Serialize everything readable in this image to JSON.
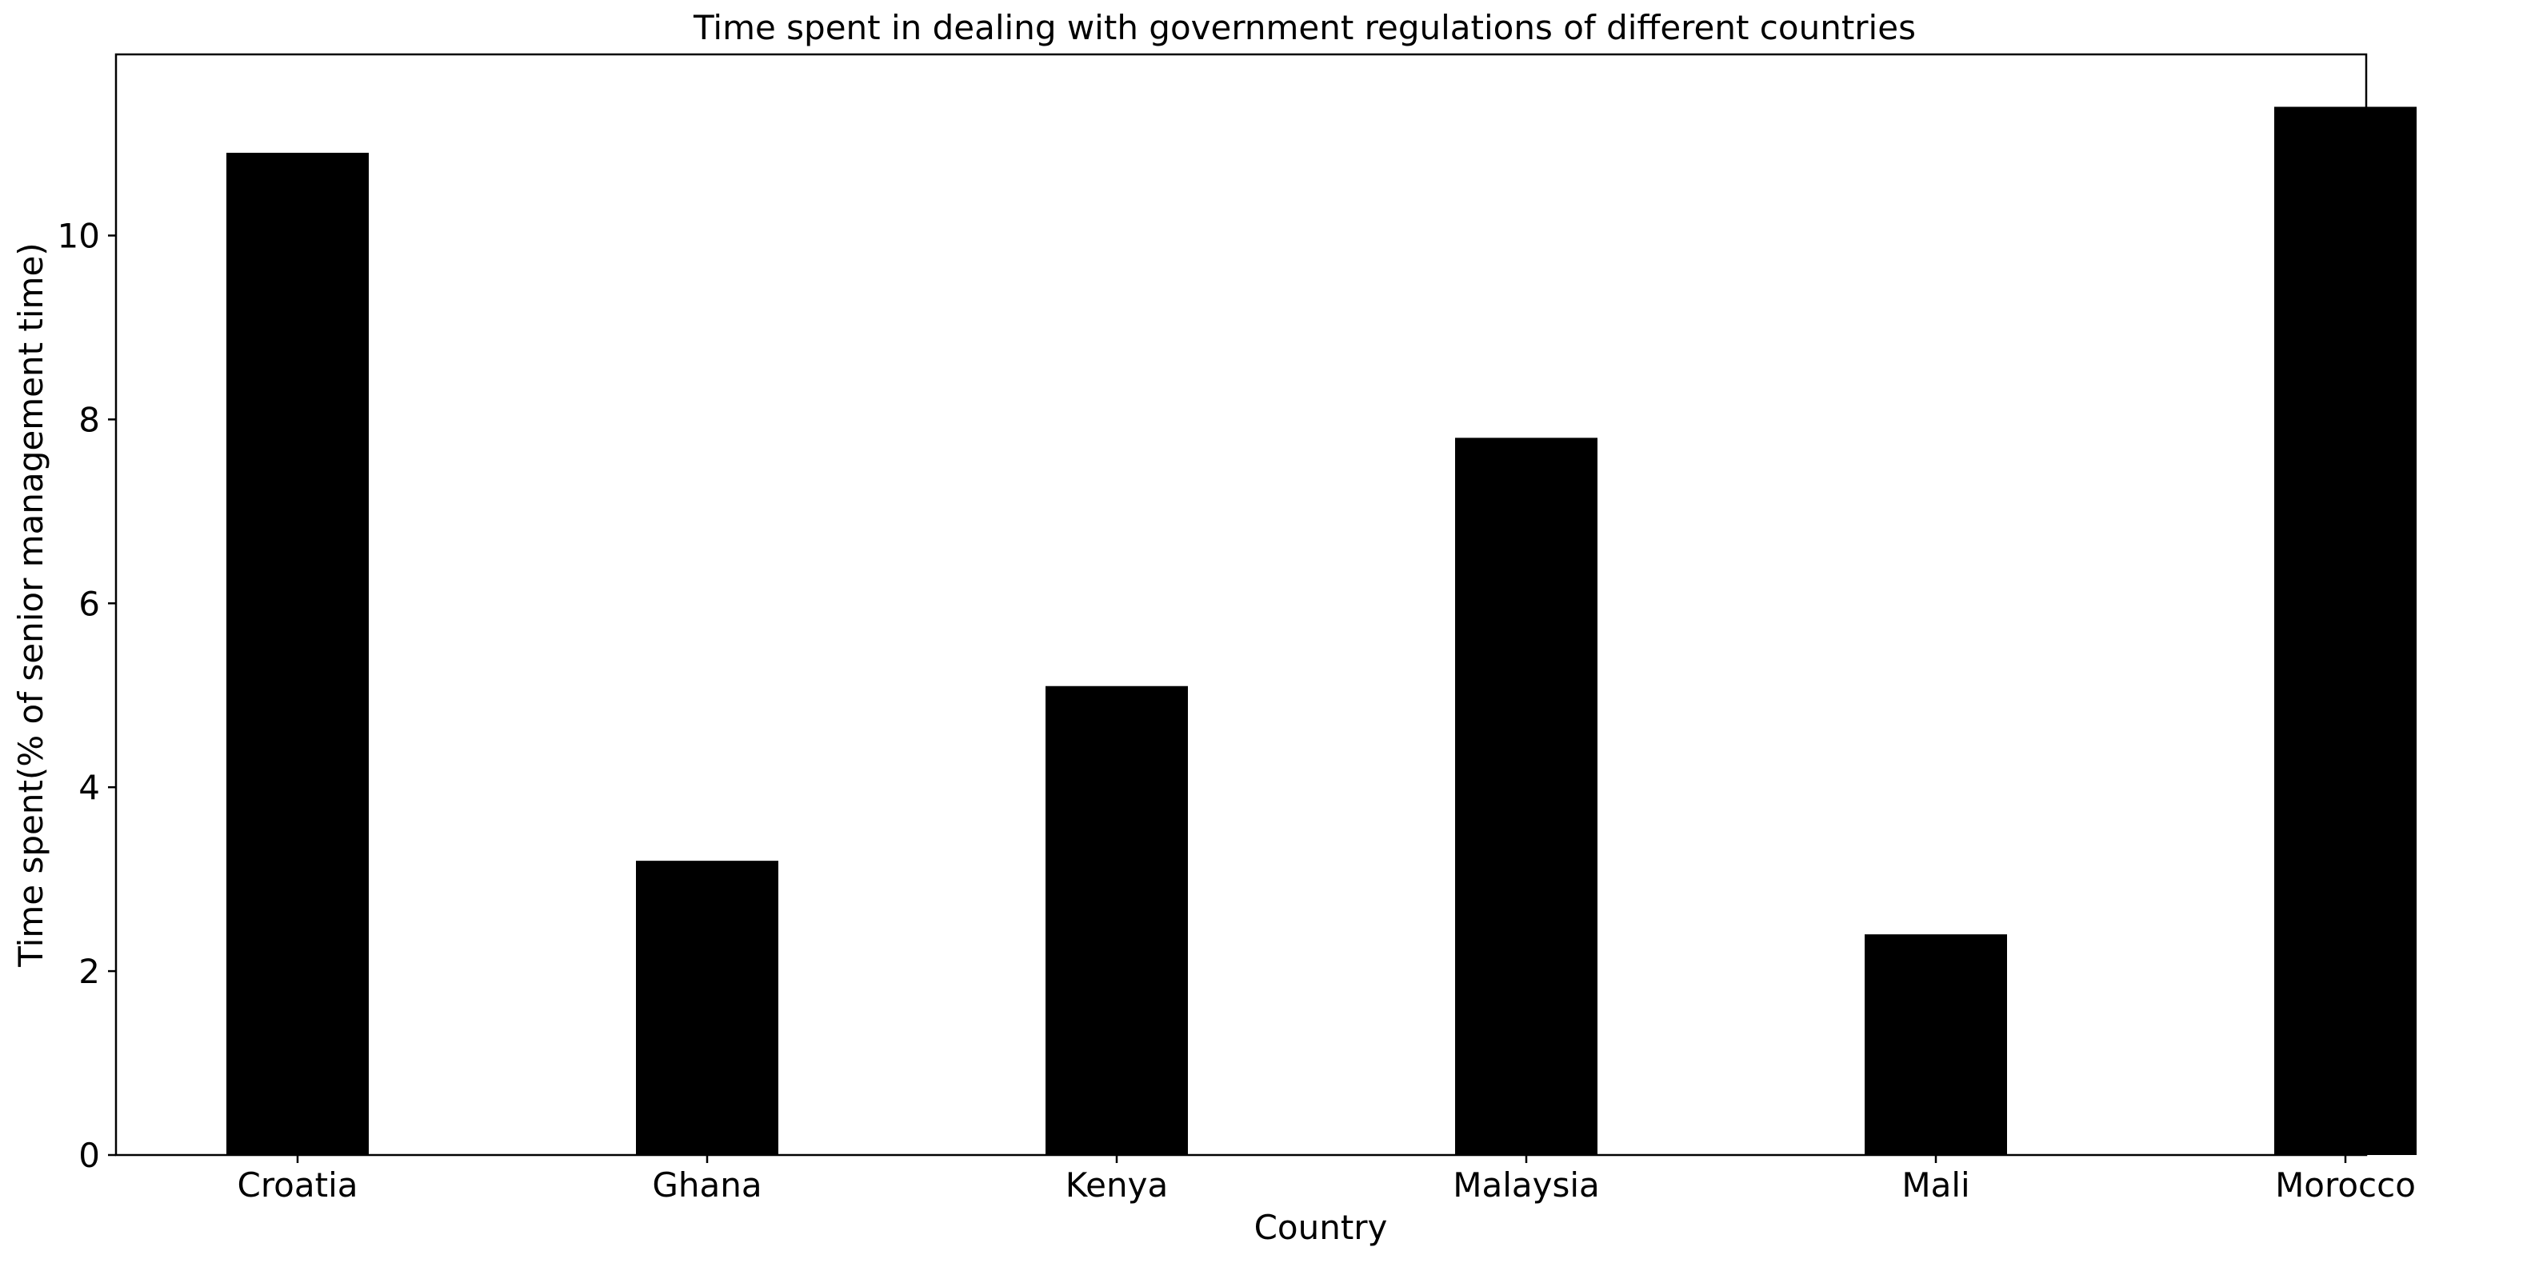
{
  "chart_data": {
    "type": "bar",
    "title": "Time spent in dealing with government regulations of different countries",
    "xlabel": "Country",
    "ylabel": "Time spent(% of senior management time)",
    "categories": [
      "Croatia",
      "Ghana",
      "Kenya",
      "Malaysia",
      "Mali",
      "Morocco"
    ],
    "series": [
      {
        "values": [
          10.9,
          3.2,
          5.1,
          7.8,
          2.4,
          11.4
        ]
      }
    ],
    "ylim": [
      0,
      11.97
    ],
    "yticks": [
      0,
      2,
      4,
      6,
      8,
      10
    ],
    "grid": false,
    "legend": false,
    "bar_color": "#000000"
  }
}
